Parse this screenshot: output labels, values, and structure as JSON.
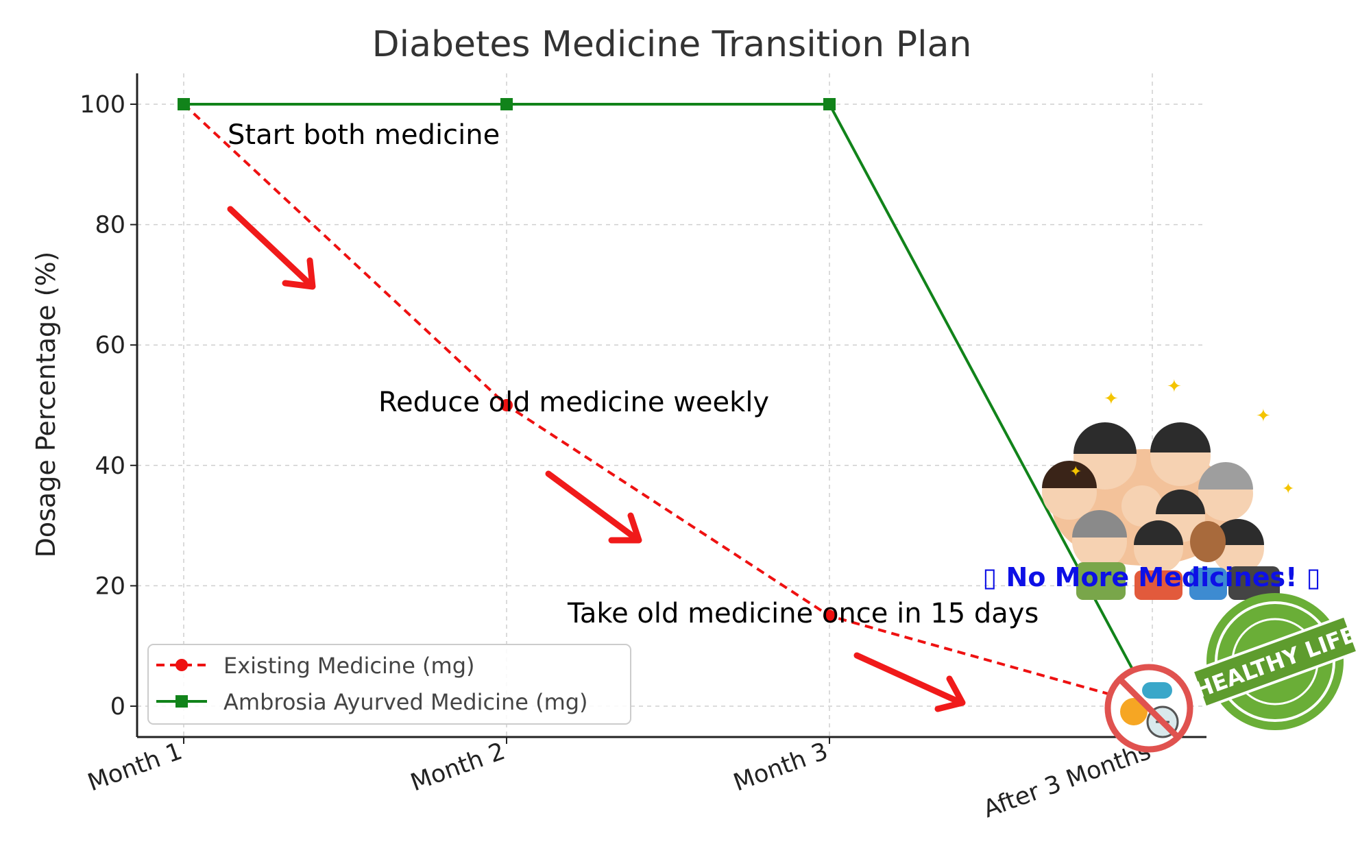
{
  "chart_data": {
    "type": "line",
    "title": "Diabetes Medicine Transition Plan",
    "xlabel": "",
    "ylabel": "Dosage Percentage (%)",
    "categories": [
      "Month 1",
      "Month 2",
      "Month 3",
      "After 3 Months"
    ],
    "ylim": [
      -5,
      105
    ],
    "yticks": [
      0,
      20,
      40,
      60,
      80,
      100
    ],
    "grid": true,
    "legend_position": "lower-left",
    "series": [
      {
        "name": "Existing Medicine (mg)",
        "values": [
          100,
          50,
          15,
          0
        ],
        "color": "#ee1111",
        "style": "dashed",
        "marker": "circle"
      },
      {
        "name": "Ambrosia Ayurved Medicine (mg)",
        "values": [
          100,
          100,
          100,
          0
        ],
        "color": "#11831a",
        "style": "solid",
        "marker": "square"
      }
    ],
    "annotations": [
      {
        "text": "Start both medicine"
      },
      {
        "text": "Reduce old medicine weekly"
      },
      {
        "text": "Take old medicine once in 15 days"
      }
    ]
  },
  "banner": {
    "text": "▯ No More Medicines! ▯",
    "color": "#0d10e6"
  },
  "badge": {
    "text": "HEALTHY LIFE",
    "color": "#5ea532"
  },
  "icons": {
    "arrows": "red-down-arrow-icon",
    "no_pills": "no-pills-icon",
    "people": "happy-family-illustration"
  }
}
